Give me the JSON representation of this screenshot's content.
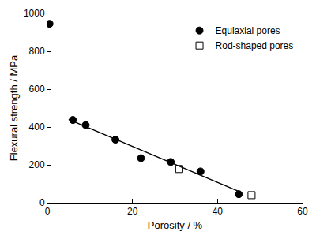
{
  "chart_data": {
    "type": "scatter",
    "x_label": "Porosity / %",
    "y_label": "Flexural strength / MPa",
    "xlim": [
      0,
      60
    ],
    "xticks": [
      0,
      20,
      40,
      60
    ],
    "ylim": [
      0,
      1000
    ],
    "yticks": [
      0,
      200,
      400,
      600,
      800,
      1000
    ],
    "grid": false,
    "legend": "upper right",
    "series": [
      {
        "name": "Equiaxial pores",
        "type": "scatter",
        "color": "#000000",
        "marker": "circle",
        "x": [
          0.5,
          6,
          9,
          16,
          22,
          29,
          36,
          45
        ],
        "values": [
          945,
          437,
          410,
          333,
          235,
          215,
          165,
          45
        ]
      },
      {
        "name": "Rod-shaped pores",
        "type": "scatter",
        "color": "#000000",
        "marker": "square-open",
        "x": [
          31,
          48
        ],
        "values": [
          178,
          40
        ]
      },
      {
        "type": "line",
        "color": "#000000",
        "line_style": "solid",
        "x": [
          5,
          45
        ],
        "values": [
          440,
          60
        ]
      }
    ]
  }
}
